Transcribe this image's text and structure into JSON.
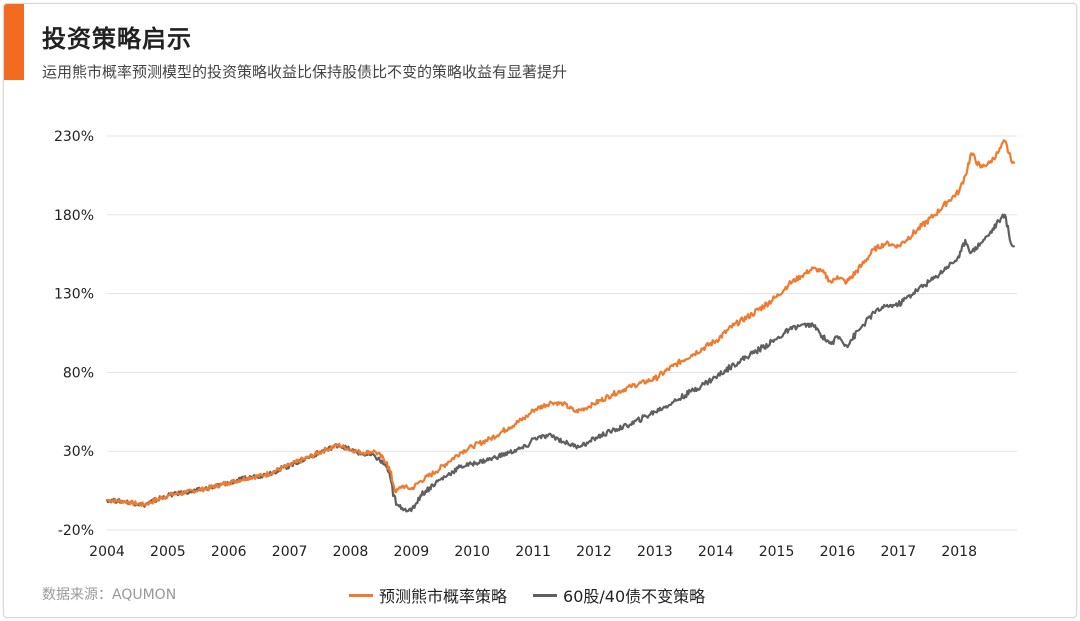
{
  "title": "投资策略启示",
  "subtitle": "运用熊市概率预测模型的投资策略收益比保持股债比不变的策略收益有显著提升",
  "source": "数据来源：AQUMON",
  "colors": {
    "accent": "#f26b21",
    "series_orange": "#ee7b30",
    "series_gray": "#5f5f5f",
    "grid": "#e3e3e3",
    "axis_text": "#222222"
  },
  "chart_data": {
    "type": "line",
    "title": "",
    "xlabel": "",
    "ylabel": "",
    "ylim": [
      -20,
      230
    ],
    "xlim": [
      2004,
      2018.95
    ],
    "y_ticks": [
      -20,
      30,
      80,
      130,
      180,
      230
    ],
    "y_tick_labels": [
      "-20%",
      "30%",
      "80%",
      "130%",
      "180%",
      "230%"
    ],
    "x_ticks": [
      2004,
      2005,
      2006,
      2007,
      2008,
      2009,
      2010,
      2011,
      2012,
      2013,
      2014,
      2015,
      2016,
      2017,
      2018
    ],
    "x_tick_labels": [
      "2004",
      "2005",
      "2006",
      "2007",
      "2008",
      "2009",
      "2010",
      "2011",
      "2012",
      "2013",
      "2014",
      "2015",
      "2016",
      "2017",
      "2018"
    ],
    "grid": "horizontal",
    "legend_position": "bottom",
    "series": [
      {
        "name": "预测熊市概率策略",
        "color": "#ee7b30",
        "x": [
          2004.0,
          2004.3,
          2004.6,
          2005.0,
          2005.3,
          2005.6,
          2006.0,
          2006.3,
          2006.6,
          2007.0,
          2007.3,
          2007.6,
          2007.8,
          2008.0,
          2008.2,
          2008.4,
          2008.6,
          2008.75,
          2008.85,
          2009.0,
          2009.15,
          2009.4,
          2009.6,
          2009.8,
          2010.0,
          2010.3,
          2010.6,
          2010.9,
          2011.0,
          2011.3,
          2011.5,
          2011.7,
          2011.9,
          2012.0,
          2012.3,
          2012.6,
          2013.0,
          2013.3,
          2013.6,
          2014.0,
          2014.3,
          2014.6,
          2015.0,
          2015.2,
          2015.4,
          2015.6,
          2015.75,
          2015.9,
          2016.0,
          2016.15,
          2016.4,
          2016.6,
          2016.8,
          2017.0,
          2017.3,
          2017.6,
          2017.8,
          2018.0,
          2018.1,
          2018.2,
          2018.35,
          2018.5,
          2018.65,
          2018.75,
          2018.85,
          2018.9
        ],
        "values": [
          -1,
          -2,
          -4,
          2,
          4,
          6,
          10,
          13,
          15,
          21,
          26,
          31,
          34,
          31,
          29,
          30,
          23,
          4,
          8,
          6,
          11,
          17,
          23,
          29,
          33,
          38,
          45,
          52,
          56,
          61,
          60,
          55,
          58,
          60,
          66,
          71,
          76,
          84,
          91,
          100,
          110,
          117,
          128,
          136,
          141,
          146,
          144,
          137,
          141,
          137,
          148,
          158,
          162,
          160,
          170,
          180,
          188,
          195,
          205,
          219,
          210,
          213,
          220,
          227,
          215,
          213
        ]
      },
      {
        "name": "60股/40债不变策略",
        "color": "#5f5f5f",
        "x": [
          2004.0,
          2004.3,
          2004.6,
          2005.0,
          2005.3,
          2005.6,
          2006.0,
          2006.3,
          2006.6,
          2007.0,
          2007.3,
          2007.6,
          2007.8,
          2008.0,
          2008.2,
          2008.4,
          2008.6,
          2008.75,
          2008.85,
          2009.0,
          2009.15,
          2009.4,
          2009.6,
          2009.8,
          2010.0,
          2010.3,
          2010.6,
          2010.9,
          2011.0,
          2011.3,
          2011.5,
          2011.7,
          2011.9,
          2012.0,
          2012.3,
          2012.6,
          2013.0,
          2013.3,
          2013.6,
          2014.0,
          2014.3,
          2014.6,
          2015.0,
          2015.2,
          2015.4,
          2015.6,
          2015.75,
          2015.9,
          2016.0,
          2016.15,
          2016.4,
          2016.6,
          2016.8,
          2017.0,
          2017.3,
          2017.6,
          2017.8,
          2018.0,
          2018.1,
          2018.2,
          2018.35,
          2018.5,
          2018.65,
          2018.75,
          2018.85,
          2018.9
        ],
        "values": [
          -1,
          -2,
          -4,
          2,
          4,
          6,
          10,
          13,
          15,
          21,
          26,
          31,
          34,
          31,
          28,
          27,
          20,
          -4,
          -6,
          -8,
          2,
          10,
          15,
          20,
          22,
          25,
          29,
          33,
          38,
          40,
          36,
          33,
          35,
          38,
          43,
          47,
          55,
          61,
          68,
          77,
          85,
          92,
          101,
          107,
          110,
          110,
          103,
          98,
          103,
          97,
          109,
          118,
          122,
          123,
          132,
          140,
          147,
          153,
          164,
          156,
          162,
          168,
          176,
          180,
          162,
          160
        ]
      }
    ]
  }
}
